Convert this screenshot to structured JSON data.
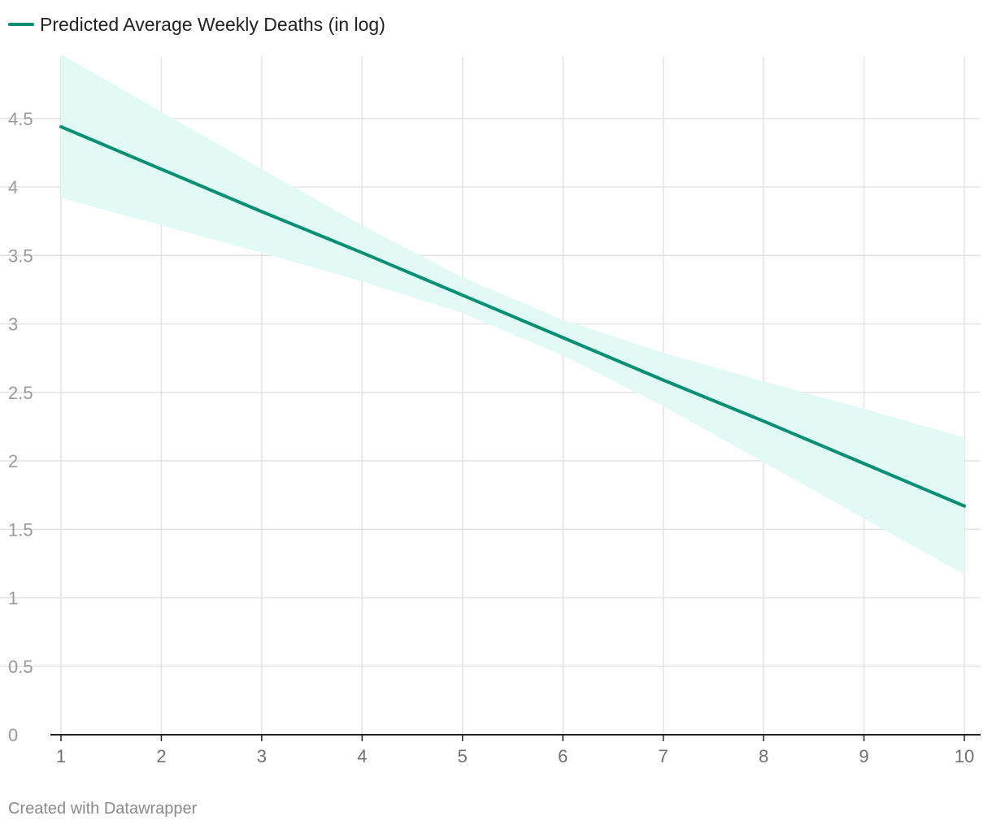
{
  "legend": {
    "label": "Predicted Average Weekly Deaths (in log)",
    "color": "#078f75"
  },
  "footer": {
    "credit": "Created with Datawrapper"
  },
  "chart_data": {
    "type": "line",
    "title": "",
    "xlabel": "",
    "ylabel": "",
    "x": [
      1,
      2,
      3,
      4,
      5,
      6,
      7,
      8,
      9,
      10
    ],
    "xlim": [
      1,
      10
    ],
    "ylim": [
      0,
      4.95
    ],
    "x_ticks": [
      "1",
      "2",
      "3",
      "4",
      "5",
      "6",
      "7",
      "8",
      "9",
      "10"
    ],
    "y_ticks": [
      "0",
      "0.5",
      "1",
      "1.5",
      "2",
      "2.5",
      "3",
      "3.5",
      "4",
      "4.5"
    ],
    "series": [
      {
        "name": "Predicted Average Weekly Deaths (in log)",
        "values": [
          4.44,
          4.13,
          3.82,
          3.52,
          3.21,
          2.9,
          2.59,
          2.29,
          1.98,
          1.67
        ],
        "lower": [
          3.92,
          3.72,
          3.52,
          3.31,
          3.08,
          2.77,
          2.4,
          1.99,
          1.58,
          1.17
        ],
        "upper": [
          4.97,
          4.55,
          4.13,
          3.72,
          3.34,
          3.03,
          2.79,
          2.58,
          2.38,
          2.17
        ],
        "line_color": "#078f75",
        "band_color": "#dffaf4"
      }
    ],
    "grid": true,
    "legend_position": "top-left"
  }
}
